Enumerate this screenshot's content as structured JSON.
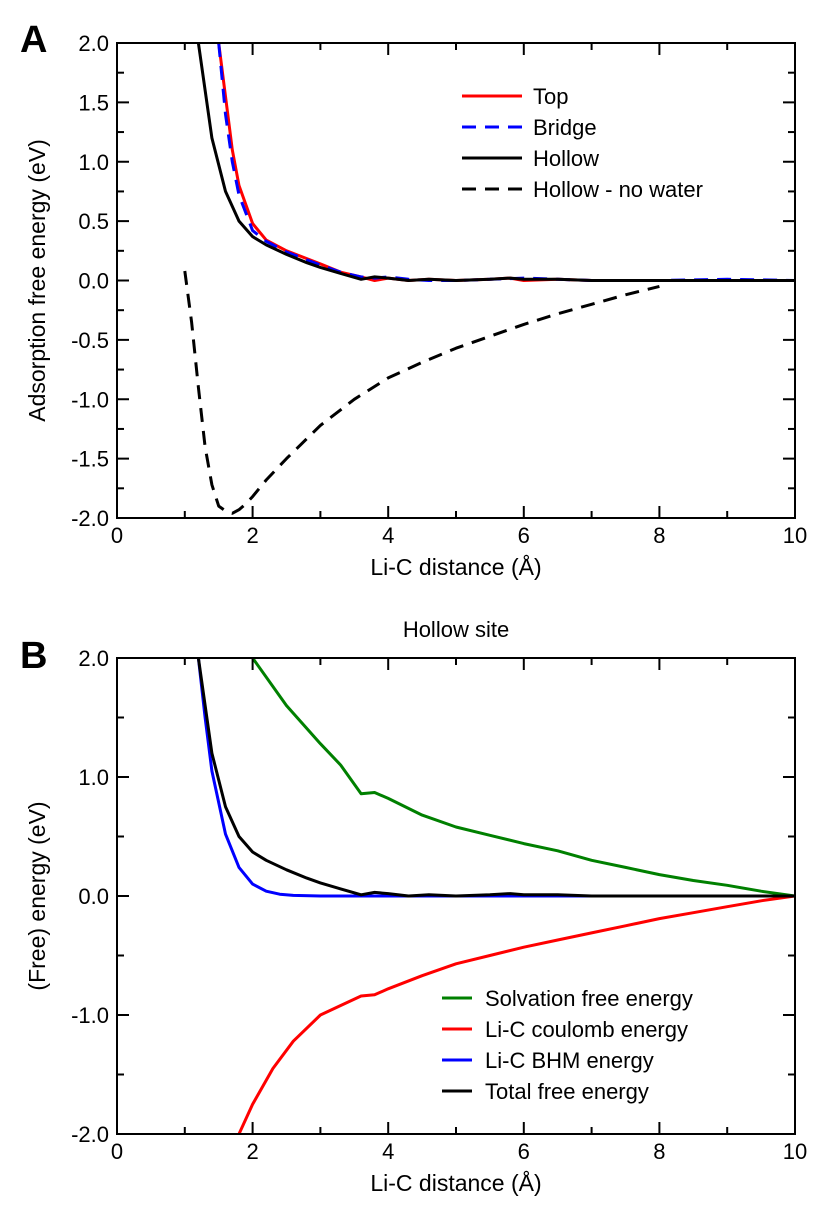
{
  "chart_data": [
    {
      "type": "line",
      "panel_label": "A",
      "title": "",
      "xlabel": "Li-C distance (Å)",
      "ylabel": "Adsorption free energy (eV)",
      "xlim": [
        0,
        10
      ],
      "ylim": [
        -2.0,
        2.0
      ],
      "x_ticks": [
        "0",
        "2",
        "4",
        "6",
        "8",
        "10"
      ],
      "y_ticks": [
        "2.0",
        "1.5",
        "1.0",
        "0.5",
        "0.0",
        "-0.5",
        "-1.0",
        "-1.5",
        "-2.0"
      ],
      "grid": false,
      "legend_position": "top-right",
      "series": [
        {
          "name": "Top",
          "color": "#ff0000",
          "dash": "solid",
          "x": [
            1.5,
            1.6,
            1.7,
            1.8,
            2.0,
            2.2,
            2.5,
            3.0,
            3.3,
            3.6,
            3.8,
            4.0,
            4.3,
            4.6,
            5.0,
            5.5,
            5.8,
            6.0,
            6.5,
            7.0,
            8.0,
            9.0,
            10.0
          ],
          "y": [
            2.0,
            1.55,
            1.1,
            0.8,
            0.48,
            0.34,
            0.25,
            0.14,
            0.07,
            0.03,
            0.0,
            0.02,
            0.0,
            0.01,
            0.0,
            0.01,
            0.02,
            0.0,
            0.01,
            0.0,
            0.0,
            0.0,
            0.0
          ]
        },
        {
          "name": "Bridge",
          "color": "#0000ff",
          "dash": "dashed",
          "x": [
            1.5,
            1.6,
            1.7,
            1.8,
            2.0,
            2.2,
            2.5,
            3.0,
            3.3,
            3.6,
            3.8,
            4.0,
            4.3,
            4.6,
            5.0,
            5.5,
            6.0,
            6.5,
            7.0,
            8.0,
            9.0,
            10.0
          ],
          "y": [
            2.0,
            1.4,
            1.0,
            0.72,
            0.42,
            0.33,
            0.24,
            0.13,
            0.07,
            0.03,
            0.02,
            0.03,
            0.01,
            0.0,
            0.0,
            0.01,
            0.02,
            0.01,
            0.0,
            0.0,
            0.01,
            0.0
          ]
        },
        {
          "name": "Hollow",
          "color": "#000000",
          "dash": "solid",
          "x": [
            1.2,
            1.4,
            1.6,
            1.8,
            2.0,
            2.2,
            2.5,
            2.8,
            3.0,
            3.3,
            3.6,
            3.8,
            4.0,
            4.3,
            4.6,
            5.0,
            5.5,
            5.8,
            6.0,
            6.5,
            7.0,
            8.0,
            9.0,
            10.0
          ],
          "y": [
            2.0,
            1.2,
            0.75,
            0.5,
            0.37,
            0.3,
            0.22,
            0.15,
            0.11,
            0.06,
            0.01,
            0.03,
            0.02,
            0.0,
            0.01,
            0.0,
            0.01,
            0.02,
            0.01,
            0.01,
            0.0,
            0.0,
            0.0,
            0.0
          ]
        },
        {
          "name": "Hollow - no water",
          "color": "#000000",
          "dash": "dashed",
          "x": [
            1.0,
            1.1,
            1.2,
            1.3,
            1.4,
            1.5,
            1.6,
            1.7,
            1.8,
            1.9,
            2.0,
            2.2,
            2.5,
            3.0,
            3.5,
            4.0,
            4.5,
            5.0,
            5.5,
            6.0,
            6.5,
            7.0,
            7.5,
            8.0
          ],
          "y": [
            0.08,
            -0.35,
            -0.9,
            -1.4,
            -1.72,
            -1.9,
            -1.94,
            -1.96,
            -1.93,
            -1.88,
            -1.82,
            -1.68,
            -1.5,
            -1.22,
            -1.0,
            -0.82,
            -0.69,
            -0.57,
            -0.47,
            -0.37,
            -0.28,
            -0.2,
            -0.12,
            -0.05
          ]
        }
      ]
    },
    {
      "type": "line",
      "panel_label": "B",
      "title": "Hollow site",
      "xlabel": "Li-C distance (Å)",
      "ylabel": "(Free) energy (eV)",
      "xlim": [
        0,
        10
      ],
      "ylim": [
        -2.0,
        2.0
      ],
      "x_ticks": [
        "0",
        "2",
        "4",
        "6",
        "8",
        "10"
      ],
      "y_ticks": [
        "2.0",
        "1.0",
        "0.0",
        "-1.0",
        "-2.0"
      ],
      "grid": false,
      "legend_position": "bottom-right",
      "series": [
        {
          "name": "Solvation free energy",
          "color": "#008000",
          "dash": "solid",
          "x": [
            2.0,
            2.5,
            3.0,
            3.3,
            3.6,
            3.8,
            4.0,
            4.5,
            5.0,
            5.5,
            6.0,
            6.5,
            7.0,
            7.5,
            8.0,
            8.5,
            9.0,
            9.5,
            10.0
          ],
          "y": [
            2.0,
            1.6,
            1.28,
            1.1,
            0.86,
            0.87,
            0.82,
            0.68,
            0.58,
            0.51,
            0.44,
            0.38,
            0.3,
            0.24,
            0.18,
            0.13,
            0.09,
            0.04,
            0.0
          ]
        },
        {
          "name": "Li-C coulomb energy",
          "color": "#ff0000",
          "dash": "solid",
          "x": [
            1.8,
            2.0,
            2.3,
            2.6,
            3.0,
            3.3,
            3.6,
            3.8,
            4.0,
            4.5,
            5.0,
            5.5,
            6.0,
            6.5,
            7.0,
            7.5,
            8.0,
            8.5,
            9.0,
            9.5,
            10.0
          ],
          "y": [
            -2.0,
            -1.75,
            -1.45,
            -1.22,
            -1.0,
            -0.92,
            -0.84,
            -0.83,
            -0.78,
            -0.67,
            -0.57,
            -0.5,
            -0.43,
            -0.37,
            -0.31,
            -0.25,
            -0.19,
            -0.14,
            -0.09,
            -0.04,
            0.0
          ]
        },
        {
          "name": "Li-C BHM energy",
          "color": "#0000ff",
          "dash": "solid",
          "x": [
            1.2,
            1.3,
            1.4,
            1.6,
            1.8,
            2.0,
            2.2,
            2.4,
            2.6,
            3.0,
            4.0,
            5.0,
            6.0,
            7.0,
            8.0,
            9.0,
            10.0
          ],
          "y": [
            2.0,
            1.5,
            1.05,
            0.52,
            0.24,
            0.1,
            0.04,
            0.015,
            0.005,
            0.0,
            0.0,
            0.0,
            0.0,
            0.0,
            0.0,
            0.0,
            0.0
          ]
        },
        {
          "name": "Total free energy",
          "color": "#000000",
          "dash": "solid",
          "x": [
            1.2,
            1.4,
            1.6,
            1.8,
            2.0,
            2.2,
            2.5,
            2.8,
            3.0,
            3.3,
            3.6,
            3.8,
            4.0,
            4.3,
            4.6,
            5.0,
            5.5,
            5.8,
            6.0,
            6.5,
            7.0,
            8.0,
            9.0,
            10.0
          ],
          "y": [
            2.0,
            1.2,
            0.75,
            0.5,
            0.37,
            0.3,
            0.22,
            0.15,
            0.11,
            0.06,
            0.01,
            0.03,
            0.02,
            0.0,
            0.01,
            0.0,
            0.01,
            0.02,
            0.01,
            0.01,
            0.0,
            0.0,
            0.0,
            0.0
          ]
        }
      ]
    }
  ]
}
